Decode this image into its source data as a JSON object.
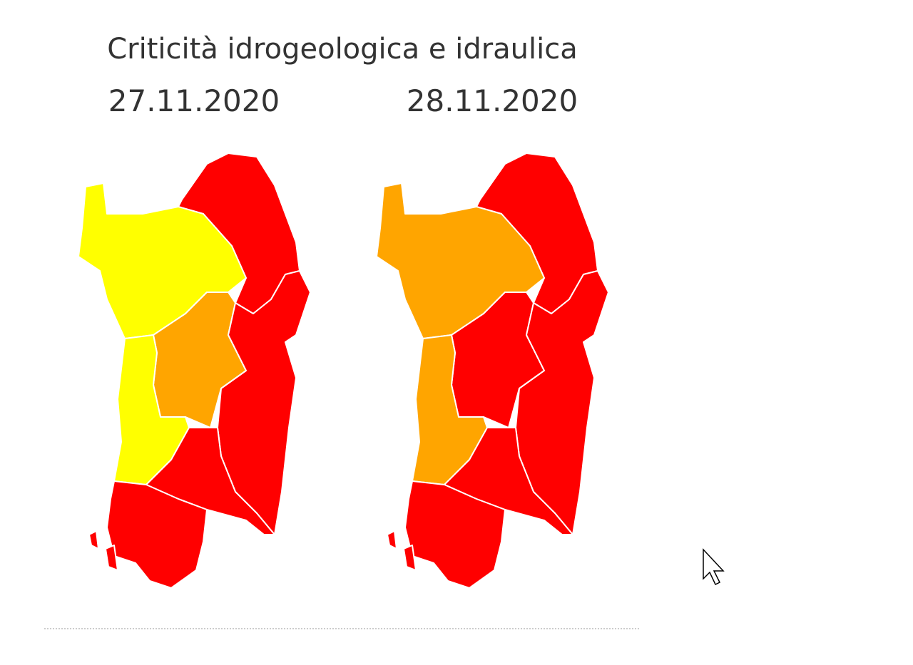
{
  "header": {
    "title": "Criticità idrogeologica e idraulica"
  },
  "maps": [
    {
      "date": "27.11.2020"
    },
    {
      "date": "28.11.2020"
    }
  ]
}
